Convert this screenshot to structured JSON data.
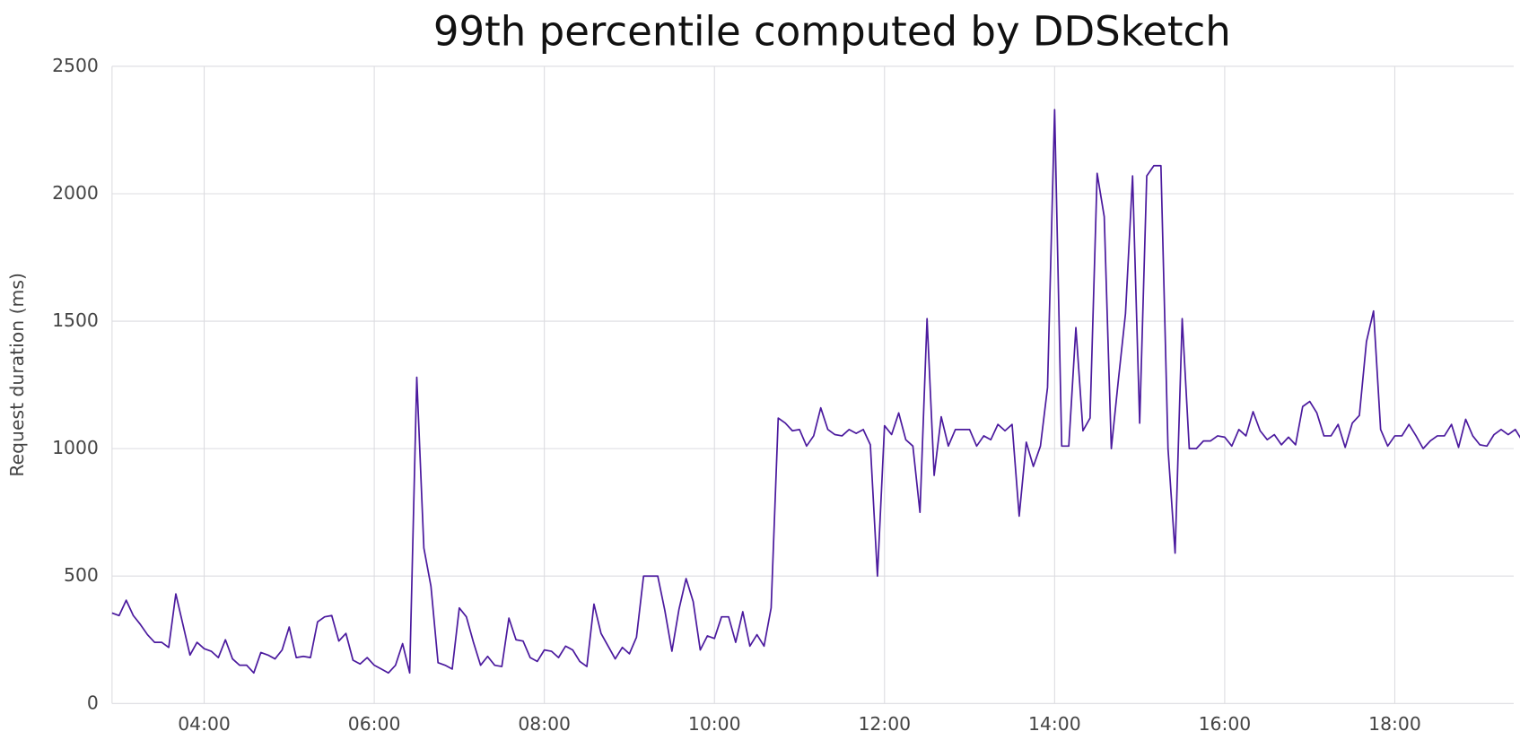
{
  "chart_data": {
    "type": "line",
    "title": "99th percentile computed by DDSketch",
    "y_label": "Request duration (ms)",
    "color": "#4b1a9e",
    "grid": true,
    "xlim": [
      "02:55",
      "19:30"
    ],
    "xticks": [
      "04:00",
      "06:00",
      "08:00",
      "10:00",
      "12:00",
      "14:00",
      "16:00",
      "18:00"
    ],
    "ylim": [
      0,
      2500
    ],
    "yticks": [
      0,
      500,
      1000,
      1500,
      2000,
      2500
    ],
    "x": [
      "02:55",
      "03:00",
      "03:05",
      "03:10",
      "03:15",
      "03:20",
      "03:25",
      "03:30",
      "03:35",
      "03:40",
      "03:45",
      "03:50",
      "03:55",
      "04:00",
      "04:05",
      "04:10",
      "04:15",
      "04:20",
      "04:25",
      "04:30",
      "04:35",
      "04:40",
      "04:45",
      "04:50",
      "04:55",
      "05:00",
      "05:05",
      "05:10",
      "05:15",
      "05:20",
      "05:25",
      "05:30",
      "05:35",
      "05:40",
      "05:45",
      "05:50",
      "05:55",
      "06:00",
      "06:05",
      "06:10",
      "06:15",
      "06:20",
      "06:25",
      "06:30",
      "06:35",
      "06:40",
      "06:45",
      "06:50",
      "06:55",
      "07:00",
      "07:05",
      "07:10",
      "07:15",
      "07:20",
      "07:25",
      "07:30",
      "07:35",
      "07:40",
      "07:45",
      "07:50",
      "07:55",
      "08:00",
      "08:05",
      "08:10",
      "08:15",
      "08:20",
      "08:25",
      "08:30",
      "08:35",
      "08:40",
      "08:45",
      "08:50",
      "08:55",
      "09:00",
      "09:05",
      "09:10",
      "09:15",
      "09:20",
      "09:25",
      "09:30",
      "09:35",
      "09:40",
      "09:45",
      "09:50",
      "09:55",
      "10:00",
      "10:05",
      "10:10",
      "10:15",
      "10:20",
      "10:25",
      "10:30",
      "10:35",
      "10:40",
      "10:45",
      "10:50",
      "10:55",
      "11:00",
      "11:05",
      "11:10",
      "11:15",
      "11:20",
      "11:25",
      "11:30",
      "11:35",
      "11:40",
      "11:45",
      "11:50",
      "11:55",
      "12:00",
      "12:05",
      "12:10",
      "12:15",
      "12:20",
      "12:25",
      "12:30",
      "12:35",
      "12:40",
      "12:45",
      "12:50",
      "12:55",
      "13:00",
      "13:05",
      "13:10",
      "13:15",
      "13:20",
      "13:25",
      "13:30",
      "13:35",
      "13:40",
      "13:45",
      "13:50",
      "13:55",
      "14:00",
      "14:05",
      "14:10",
      "14:15",
      "14:20",
      "14:25",
      "14:30",
      "14:35",
      "14:40",
      "14:45",
      "14:50",
      "14:55",
      "15:00",
      "15:05",
      "15:10",
      "15:15",
      "15:20",
      "15:25",
      "15:30",
      "15:35",
      "15:40",
      "15:45",
      "15:50",
      "15:55",
      "16:00",
      "16:05",
      "16:10",
      "16:15",
      "16:20",
      "16:25",
      "16:30",
      "16:35",
      "16:40",
      "16:45",
      "16:50",
      "16:55",
      "17:00",
      "17:05",
      "17:10",
      "17:15",
      "17:20",
      "17:25",
      "17:30",
      "17:35",
      "17:40",
      "17:45",
      "17:50",
      "17:55",
      "18:00",
      "18:05",
      "18:10",
      "18:15",
      "18:20",
      "18:25",
      "18:30",
      "18:35",
      "18:40",
      "18:45",
      "18:50",
      "18:55",
      "19:00",
      "19:05",
      "19:10",
      "19:15",
      "19:20",
      "19:25",
      "19:30"
    ],
    "values": [
      355,
      345,
      405,
      345,
      310,
      270,
      240,
      240,
      220,
      430,
      310,
      190,
      240,
      215,
      205,
      180,
      250,
      175,
      150,
      150,
      120,
      200,
      190,
      175,
      210,
      300,
      180,
      185,
      180,
      320,
      340,
      345,
      245,
      275,
      170,
      155,
      180,
      150,
      135,
      120,
      150,
      235,
      120,
      1280,
      610,
      460,
      160,
      150,
      135,
      375,
      340,
      240,
      150,
      185,
      150,
      145,
      335,
      250,
      245,
      180,
      165,
      210,
      205,
      180,
      225,
      210,
      165,
      145,
      390,
      275,
      225,
      175,
      220,
      195,
      260,
      500,
      500,
      500,
      365,
      205,
      370,
      490,
      400,
      210,
      265,
      255,
      340,
      340,
      240,
      360,
      225,
      270,
      225,
      375,
      1120,
      1100,
      1070,
      1075,
      1010,
      1050,
      1160,
      1075,
      1055,
      1050,
      1075,
      1060,
      1075,
      1015,
      500,
      1090,
      1055,
      1140,
      1035,
      1010,
      750,
      1510,
      895,
      1125,
      1010,
      1075,
      1075,
      1075,
      1010,
      1050,
      1035,
      1095,
      1070,
      1095,
      735,
      1025,
      930,
      1010,
      1240,
      2330,
      1010,
      1010,
      1475,
      1070,
      1120,
      2080,
      1910,
      1000,
      1270,
      1530,
      2070,
      1100,
      2070,
      2110,
      2110,
      1000,
      590,
      1510,
      1000,
      1000,
      1030,
      1030,
      1050,
      1045,
      1010,
      1075,
      1050,
      1145,
      1070,
      1035,
      1055,
      1015,
      1045,
      1015,
      1165,
      1185,
      1140,
      1050,
      1050,
      1095,
      1005,
      1100,
      1130,
      1420,
      1540,
      1075,
      1010,
      1050,
      1050,
      1095,
      1050,
      1000,
      1030,
      1050,
      1050,
      1095,
      1005,
      1115,
      1050,
      1015,
      1010,
      1055,
      1075,
      1055,
      1075,
      1030
    ]
  }
}
